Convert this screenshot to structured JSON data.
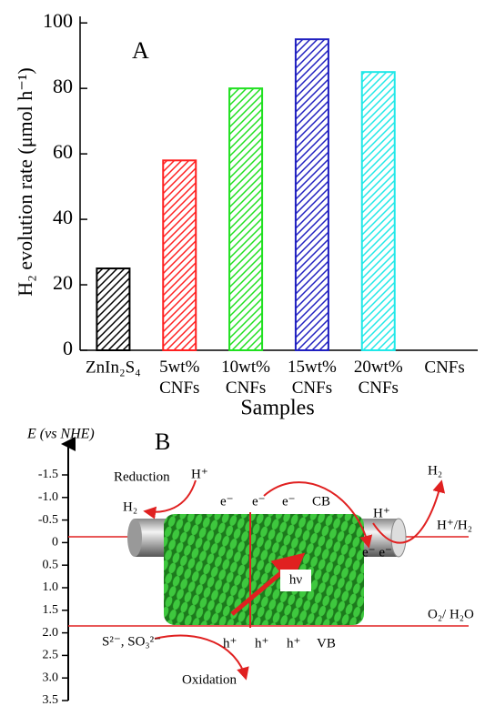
{
  "chart_data": {
    "type": "bar",
    "annotation": "A",
    "ylabel": "H₂ evolution rate (μmol h⁻¹)",
    "xlabel": "Samples",
    "categories": [
      "ZnIn₂S₄",
      "5wt% CNFs",
      "10wt% CNFs",
      "15wt% CNFs",
      "20wt% CNFs",
      "CNFs"
    ],
    "values": [
      25,
      58,
      80,
      95,
      85,
      0
    ],
    "colors": [
      "#000000",
      "#ff2020",
      "#20e020",
      "#2020c0",
      "#20e8e8",
      "#000000"
    ],
    "ylim": [
      0,
      102
    ],
    "yticks": [
      0,
      20,
      40,
      60,
      80,
      100
    ]
  },
  "diagram": {
    "label": "B",
    "axis_title": "E (vs NHE)",
    "axis_ticks": [
      "-1.5",
      "-1.0",
      "-0.5",
      "0",
      "0.5",
      "1.0",
      "1.5",
      "2.0",
      "2.5",
      "3.0",
      "3.5"
    ],
    "reduction": "Reduction",
    "h_plus_left": "H⁺",
    "h2_left": "H₂",
    "electrons": [
      "e⁻",
      "e⁻",
      "e⁻"
    ],
    "cb": "CB",
    "h_plus_right": "H⁺",
    "h2_right": "H₂",
    "couple_h": "H⁺/H₂",
    "electrons_tube": "e⁻ e⁻",
    "photon": "hν",
    "couple_o": "O₂/ H₂O",
    "sacrificial": "S²⁻, SO₃²⁻",
    "holes": [
      "h⁺",
      "h⁺",
      "h⁺"
    ],
    "vb": "VB",
    "oxidation": "Oxidation"
  }
}
